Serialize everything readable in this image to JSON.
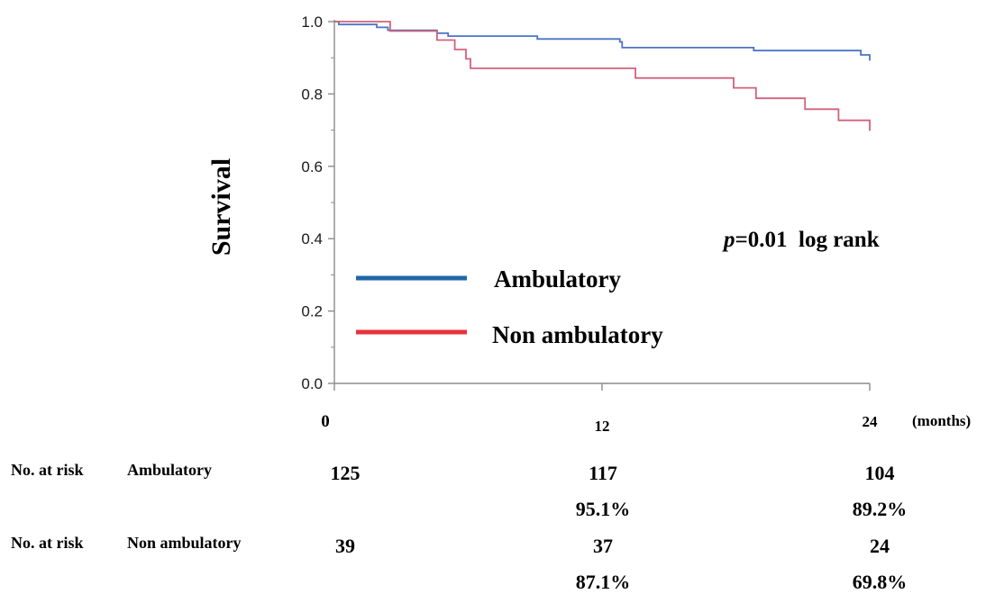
{
  "chart_data": {
    "type": "line",
    "subtype": "kaplan-meier",
    "title": "",
    "ylabel": "Survival",
    "xlabel": "(months)",
    "xlim": [
      0,
      24
    ],
    "ylim": [
      0,
      1
    ],
    "x_ticks": [
      0,
      12,
      24
    ],
    "x_tick_labels": [
      "0",
      "12",
      "24"
    ],
    "y_ticks": [
      0,
      0.2,
      0.4,
      0.6,
      0.8,
      1.0
    ],
    "y_tick_labels": [
      "0.0",
      "0.2",
      "0.4",
      "0.6",
      "0.8",
      "1.0"
    ],
    "grid": false,
    "legend_position": "center-left",
    "annotation": {
      "p_label": "p",
      "rest": "=0.01  log rank"
    },
    "series": [
      {
        "name": "Ambulatory",
        "color": "#4a75c4",
        "legend_color": "#2166ac",
        "steps": [
          [
            0,
            1.0
          ],
          [
            0.2,
            0.992
          ],
          [
            1.9,
            0.984
          ],
          [
            2.4,
            0.976
          ],
          [
            4.6,
            0.968
          ],
          [
            5.1,
            0.96
          ],
          [
            9.1,
            0.952
          ],
          [
            12.8,
            0.944
          ],
          [
            12.9,
            0.928
          ],
          [
            18.8,
            0.92
          ],
          [
            23.6,
            0.908
          ],
          [
            24,
            0.892
          ]
        ]
      },
      {
        "name": "Non ambulatory",
        "color": "#d2617a",
        "legend_color": "#e8333c",
        "steps": [
          [
            0,
            1.0
          ],
          [
            2.5,
            0.974
          ],
          [
            4.6,
            0.949
          ],
          [
            5.4,
            0.923
          ],
          [
            5.9,
            0.897
          ],
          [
            6.1,
            0.871
          ],
          [
            13.5,
            0.844
          ],
          [
            17.9,
            0.817
          ],
          [
            18.9,
            0.788
          ],
          [
            21.1,
            0.758
          ],
          [
            22.6,
            0.727
          ],
          [
            24,
            0.698
          ]
        ]
      }
    ]
  },
  "risk_table": {
    "row_label": "No. at risk",
    "rows": [
      {
        "group": "Ambulatory",
        "counts": [
          "125",
          "117",
          "104"
        ],
        "percents": [
          "",
          "95.1%",
          "89.2%"
        ]
      },
      {
        "group": "Non ambulatory",
        "counts": [
          "39",
          "37",
          "24"
        ],
        "percents": [
          "",
          "87.1%",
          "69.8%"
        ]
      }
    ]
  }
}
